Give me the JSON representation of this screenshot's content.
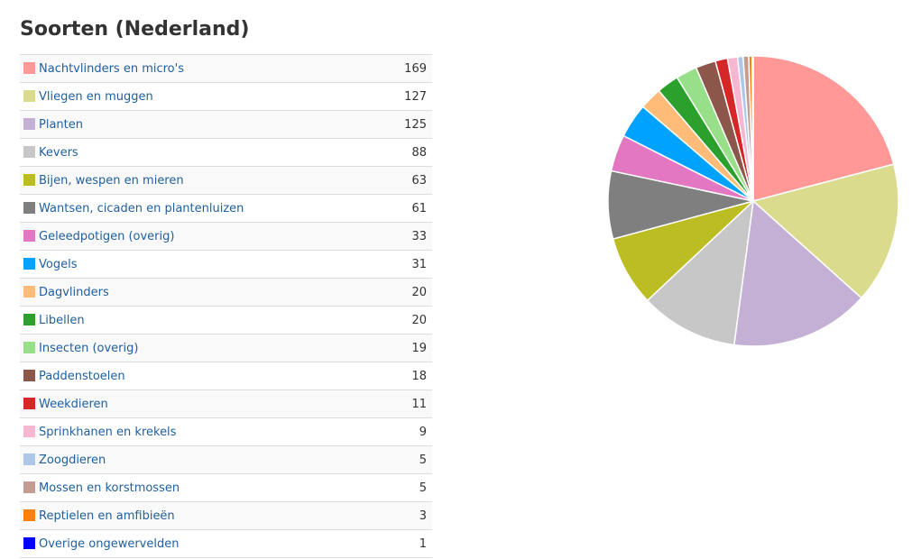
{
  "page": {
    "title": "Soorten (Nederland)"
  },
  "chart_data": {
    "type": "pie",
    "title": "Soorten (Nederland)",
    "slices": [
      {
        "label": "Nachtvlinders en micro's",
        "value": 169,
        "color": "#ff9896"
      },
      {
        "label": "Vliegen en muggen",
        "value": 127,
        "color": "#dbdb8d"
      },
      {
        "label": "Planten",
        "value": 125,
        "color": "#c5b0d5"
      },
      {
        "label": "Kevers",
        "value": 88,
        "color": "#c7c7c7"
      },
      {
        "label": "Bijen, wespen en mieren",
        "value": 63,
        "color": "#bcbd22"
      },
      {
        "label": "Wantsen, cicaden en plantenluizen",
        "value": 61,
        "color": "#7f7f7f"
      },
      {
        "label": "Geleedpotigen (overig)",
        "value": 33,
        "color": "#e377c2"
      },
      {
        "label": "Vogels",
        "value": 31,
        "color": "#00a2ff"
      },
      {
        "label": "Dagvlinders",
        "value": 20,
        "color": "#ffbb78"
      },
      {
        "label": "Libellen",
        "value": 20,
        "color": "#2ca02c"
      },
      {
        "label": "Insecten (overig)",
        "value": 19,
        "color": "#98df8a"
      },
      {
        "label": "Paddenstoelen",
        "value": 18,
        "color": "#8c564b"
      },
      {
        "label": "Weekdieren",
        "value": 11,
        "color": "#d62728"
      },
      {
        "label": "Sprinkhanen en krekels",
        "value": 9,
        "color": "#f7b6d2"
      },
      {
        "label": "Zoogdieren",
        "value": 5,
        "color": "#aec7e8"
      },
      {
        "label": "Mossen en korstmossen",
        "value": 5,
        "color": "#c49c94"
      },
      {
        "label": "Reptielen en amfibieën",
        "value": 3,
        "color": "#ff7f0e"
      },
      {
        "label": "Overige ongewervelden",
        "value": 1,
        "color": "#0000ff"
      }
    ]
  }
}
